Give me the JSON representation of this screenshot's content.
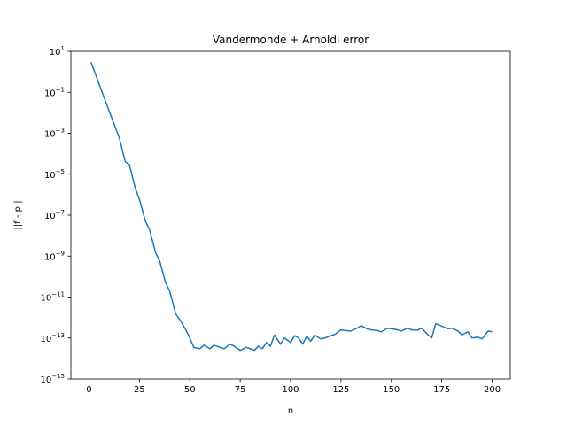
{
  "chart_data": {
    "type": "line",
    "title": "Vandermonde + Arnoldi error",
    "xlabel": "n",
    "ylabel": "||f - p||",
    "yscale": "log",
    "xlim": [
      -9,
      209
    ],
    "ylim": [
      1e-15,
      10.0
    ],
    "grid": false,
    "xticks": [
      0,
      25,
      50,
      75,
      100,
      125,
      150,
      175,
      200
    ],
    "yticks": [
      {
        "value": 10.0,
        "base": "10",
        "exp": "1"
      },
      {
        "value": 0.1,
        "base": "10",
        "exp": "−1"
      },
      {
        "value": 0.001,
        "base": "10",
        "exp": "−3"
      },
      {
        "value": 1e-05,
        "base": "10",
        "exp": "−5"
      },
      {
        "value": 1e-07,
        "base": "10",
        "exp": "−7"
      },
      {
        "value": 1e-09,
        "base": "10",
        "exp": "−9"
      },
      {
        "value": 1e-11,
        "base": "10",
        "exp": "−11"
      },
      {
        "value": 1e-13,
        "base": "10",
        "exp": "−13"
      },
      {
        "value": 1e-15,
        "base": "10",
        "exp": "−15"
      }
    ],
    "series": [
      {
        "color": "#1f77b4",
        "x": [
          1,
          5,
          10,
          15,
          18,
          20,
          23,
          25,
          28,
          30,
          33,
          35,
          38,
          40,
          43,
          45,
          48,
          50,
          52,
          55,
          57,
          60,
          62,
          65,
          67,
          70,
          72,
          75,
          78,
          80,
          82,
          84,
          86,
          88,
          90,
          92,
          95,
          97,
          100,
          102,
          104,
          106,
          108,
          110,
          112,
          115,
          117,
          120,
          122,
          125,
          127,
          130,
          133,
          135,
          138,
          140,
          143,
          145,
          148,
          150,
          153,
          155,
          158,
          160,
          163,
          165,
          168,
          170,
          172,
          175,
          178,
          180,
          183,
          185,
          188,
          190,
          193,
          195,
          198,
          200
        ],
        "y": [
          3,
          0.25,
          0.012,
          0.0006,
          4e-05,
          3e-05,
          2e-06,
          6e-07,
          5e-08,
          2e-08,
          1.5e-09,
          6e-10,
          5e-11,
          2e-11,
          1.5e-12,
          8e-13,
          2.5e-13,
          1e-13,
          3.5e-14,
          3e-14,
          4.5e-14,
          3e-14,
          4.5e-14,
          3.5e-14,
          3e-14,
          5e-14,
          4e-14,
          2.5e-14,
          3.5e-14,
          3e-14,
          2.5e-14,
          4e-14,
          3e-14,
          6e-14,
          4e-14,
          1.4e-13,
          5e-14,
          1e-13,
          6e-14,
          1.3e-13,
          1e-13,
          5e-14,
          1.2e-13,
          7e-14,
          1.4e-13,
          9e-14,
          1e-13,
          1.3e-13,
          1.5e-13,
          2.5e-13,
          2.3e-13,
          2.2e-13,
          3e-13,
          4e-13,
          2.8e-13,
          2.5e-13,
          2.3e-13,
          2e-13,
          3e-13,
          2.8e-13,
          2.5e-13,
          2.2e-13,
          3e-13,
          2.5e-13,
          2.4e-13,
          3e-13,
          1.5e-13,
          1e-13,
          5e-13,
          3.8e-13,
          2.8e-13,
          3e-13,
          2.2e-13,
          1.4e-13,
          2e-13,
          1e-13,
          1.1e-13,
          9e-14,
          2.2e-13,
          2e-13
        ]
      }
    ]
  }
}
